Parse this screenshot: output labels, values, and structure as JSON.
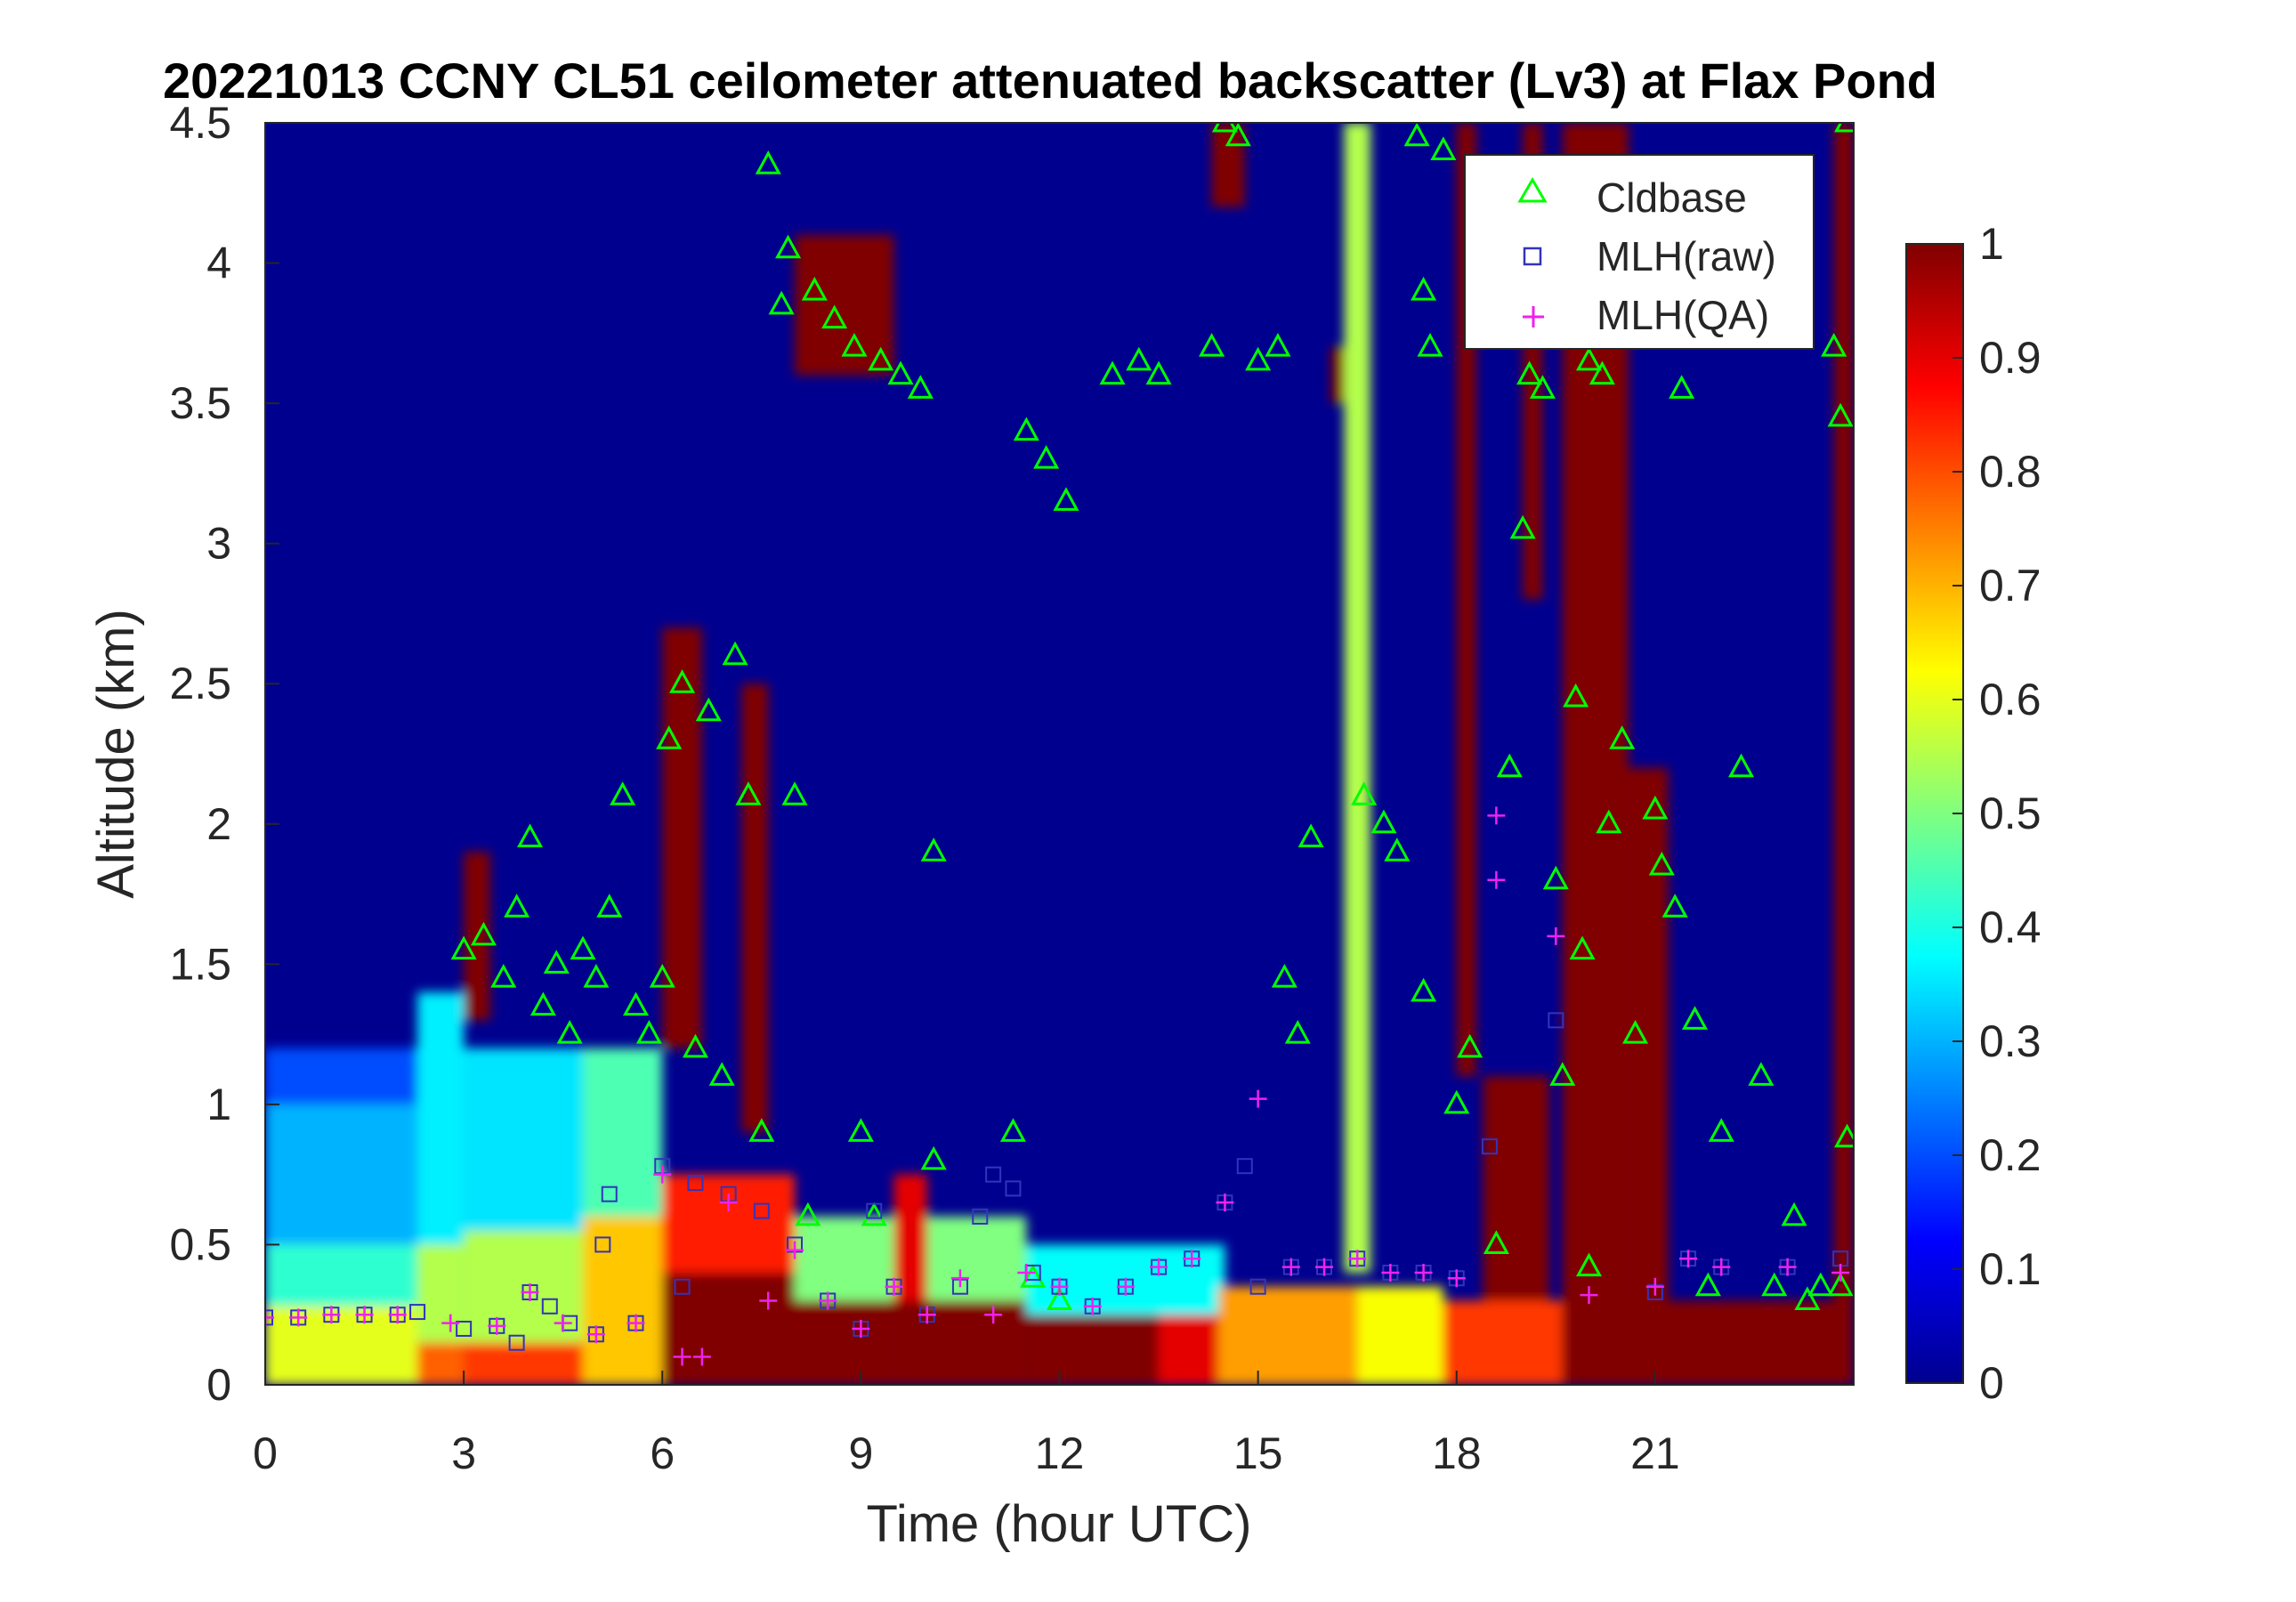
{
  "chart_data": {
    "type": "heatmap",
    "title": "20221013 CCNY CL51 ceilometer attenuated backscatter (Lv3) at Flax Pond",
    "xlabel": "Time (hour UTC)",
    "ylabel": "Altitude (km)",
    "xlim": [
      0,
      24
    ],
    "ylim": [
      0,
      4.5
    ],
    "xticks": [
      0,
      3,
      6,
      9,
      12,
      15,
      18,
      21
    ],
    "xtick_labels": [
      "0",
      "3",
      "6",
      "9",
      "12",
      "15",
      "18",
      "21"
    ],
    "yticks": [
      0,
      0.5,
      1,
      1.5,
      2,
      2.5,
      3,
      3.5,
      4,
      4.5
    ],
    "ytick_labels": [
      "0",
      "0.5",
      "1",
      "1.5",
      "2",
      "2.5",
      "3",
      "3.5",
      "4",
      "4.5"
    ],
    "colorbar": {
      "range": [
        0,
        1
      ],
      "colormap": "jet",
      "ticks": [
        0,
        0.1,
        0.2,
        0.3,
        0.4,
        0.5,
        0.6,
        0.7,
        0.8,
        0.9,
        1
      ],
      "tick_labels": [
        "0",
        "0.1",
        "0.2",
        "0.3",
        "0.4",
        "0.5",
        "0.6",
        "0.7",
        "0.8",
        "0.9",
        "1"
      ]
    },
    "legend": {
      "placement": "top-right",
      "entries": [
        {
          "label": "Cldbase",
          "marker": "triangle",
          "color": "#00ff00"
        },
        {
          "label": "MLH(raw)",
          "marker": "square",
          "color": "#3333bb"
        },
        {
          "label": "MLH(QA)",
          "marker": "plus",
          "color": "#ee22ee"
        }
      ]
    },
    "regions": [
      {
        "x": [
          0,
          2.3
        ],
        "y": [
          0,
          0.28
        ],
        "value": 0.6
      },
      {
        "x": [
          0,
          2.3
        ],
        "y": [
          0.28,
          0.5
        ],
        "value": 0.42
      },
      {
        "x": [
          0,
          2.3
        ],
        "y": [
          0.5,
          1.0
        ],
        "value": 0.3
      },
      {
        "x": [
          0,
          2.3
        ],
        "y": [
          1.0,
          1.2
        ],
        "value": 0.2
      },
      {
        "x": [
          2.3,
          3.0
        ],
        "y": [
          0,
          0.15
        ],
        "value": 0.78
      },
      {
        "x": [
          2.3,
          3.0
        ],
        "y": [
          0.15,
          0.5
        ],
        "value": 0.55
      },
      {
        "x": [
          2.3,
          3.0
        ],
        "y": [
          0.5,
          1.4
        ],
        "value": 0.36
      },
      {
        "x": [
          3.0,
          4.8
        ],
        "y": [
          0,
          0.15
        ],
        "value": 0.82
      },
      {
        "x": [
          3.0,
          4.8
        ],
        "y": [
          0.15,
          0.55
        ],
        "value": 0.55
      },
      {
        "x": [
          3.0,
          4.8
        ],
        "y": [
          0.55,
          1.2
        ],
        "value": 0.35
      },
      {
        "x": [
          4.8,
          6.0
        ],
        "y": [
          0,
          0.6
        ],
        "value": 0.68
      },
      {
        "x": [
          4.8,
          6.0
        ],
        "y": [
          0.6,
          1.2
        ],
        "value": 0.45
      },
      {
        "x": [
          6.0,
          9.5
        ],
        "y": [
          0,
          0.4
        ],
        "value": 1.0
      },
      {
        "x": [
          6.0,
          8.0
        ],
        "y": [
          0.4,
          0.75
        ],
        "value": 0.85
      },
      {
        "x": [
          8.0,
          11.5
        ],
        "y": [
          0.3,
          0.6
        ],
        "value": 0.5
      },
      {
        "x": [
          9.5,
          11.5
        ],
        "y": [
          0,
          0.3
        ],
        "value": 1.0
      },
      {
        "x": [
          9.5,
          10.0
        ],
        "y": [
          0.3,
          0.75
        ],
        "value": 0.9
      },
      {
        "x": [
          11.5,
          13.5
        ],
        "y": [
          0,
          0.25
        ],
        "value": 1.0
      },
      {
        "x": [
          11.5,
          14.5
        ],
        "y": [
          0.25,
          0.5
        ],
        "value": 0.38
      },
      {
        "x": [
          13.5,
          14.4
        ],
        "y": [
          0,
          0.25
        ],
        "value": 0.9
      },
      {
        "x": [
          14.4,
          16.5
        ],
        "y": [
          0,
          0.35
        ],
        "value": 0.72
      },
      {
        "x": [
          16.5,
          17.8
        ],
        "y": [
          0,
          0.35
        ],
        "value": 0.62
      },
      {
        "x": [
          17.8,
          19.6
        ],
        "y": [
          0,
          0.3
        ],
        "value": 0.82
      },
      {
        "x": [
          19.6,
          24.0
        ],
        "y": [
          0,
          0.3
        ],
        "value": 1.0
      },
      {
        "x": [
          18.4,
          19.4
        ],
        "y": [
          0.3,
          1.1
        ],
        "value": 1.0
      },
      {
        "x": [
          19.6,
          20.6
        ],
        "y": [
          0.3,
          4.5
        ],
        "value": 1.0
      },
      {
        "x": [
          20.6,
          21.2
        ],
        "y": [
          0.3,
          2.2
        ],
        "value": 1.0
      },
      {
        "x": [
          18.0,
          18.3
        ],
        "y": [
          1.1,
          4.5
        ],
        "value": 1.0
      },
      {
        "x": [
          19.0,
          19.3
        ],
        "y": [
          2.8,
          4.5
        ],
        "value": 1.0
      },
      {
        "x": [
          23.7,
          24.0
        ],
        "y": [
          0.3,
          4.5
        ],
        "value": 1.0
      },
      {
        "x": [
          16.3,
          16.7
        ],
        "y": [
          0.4,
          4.5
        ],
        "value": 0.55
      },
      {
        "x": [
          6.0,
          6.6
        ],
        "y": [
          1.2,
          2.7
        ],
        "value": 1.0
      },
      {
        "x": [
          7.2,
          7.6
        ],
        "y": [
          0.9,
          2.5
        ],
        "value": 1.0
      },
      {
        "x": [
          3.0,
          3.4
        ],
        "y": [
          1.3,
          1.9
        ],
        "value": 1.0
      },
      {
        "x": [
          8.0,
          9.5
        ],
        "y": [
          3.6,
          4.1
        ],
        "value": 1.0
      },
      {
        "x": [
          14.3,
          14.8
        ],
        "y": [
          4.2,
          4.5
        ],
        "value": 1.0
      },
      {
        "x": [
          16.1,
          16.3
        ],
        "y": [
          3.5,
          3.7
        ],
        "value": 1.0
      }
    ],
    "cloud_base_km": [
      {
        "x": 3.0,
        "y": 1.55
      },
      {
        "x": 3.3,
        "y": 1.6
      },
      {
        "x": 3.6,
        "y": 1.45
      },
      {
        "x": 3.8,
        "y": 1.7
      },
      {
        "x": 4.0,
        "y": 1.95
      },
      {
        "x": 4.2,
        "y": 1.35
      },
      {
        "x": 4.4,
        "y": 1.5
      },
      {
        "x": 4.6,
        "y": 1.25
      },
      {
        "x": 4.8,
        "y": 1.55
      },
      {
        "x": 5.0,
        "y": 1.45
      },
      {
        "x": 5.2,
        "y": 1.7
      },
      {
        "x": 5.4,
        "y": 2.1
      },
      {
        "x": 5.6,
        "y": 1.35
      },
      {
        "x": 5.8,
        "y": 1.25
      },
      {
        "x": 6.0,
        "y": 1.45
      },
      {
        "x": 6.1,
        "y": 2.3
      },
      {
        "x": 6.3,
        "y": 2.5
      },
      {
        "x": 6.5,
        "y": 1.2
      },
      {
        "x": 6.7,
        "y": 2.4
      },
      {
        "x": 6.9,
        "y": 1.1
      },
      {
        "x": 7.1,
        "y": 2.6
      },
      {
        "x": 7.3,
        "y": 2.1
      },
      {
        "x": 7.5,
        "y": 0.9
      },
      {
        "x": 7.6,
        "y": 4.35
      },
      {
        "x": 7.8,
        "y": 3.85
      },
      {
        "x": 7.9,
        "y": 4.05
      },
      {
        "x": 8.0,
        "y": 2.1
      },
      {
        "x": 8.2,
        "y": 0.6
      },
      {
        "x": 8.3,
        "y": 3.9
      },
      {
        "x": 8.6,
        "y": 3.8
      },
      {
        "x": 8.9,
        "y": 3.7
      },
      {
        "x": 9.0,
        "y": 0.9
      },
      {
        "x": 9.2,
        "y": 0.6
      },
      {
        "x": 9.3,
        "y": 3.65
      },
      {
        "x": 9.6,
        "y": 3.6
      },
      {
        "x": 9.9,
        "y": 3.55
      },
      {
        "x": 10.1,
        "y": 1.9
      },
      {
        "x": 10.1,
        "y": 0.8
      },
      {
        "x": 11.3,
        "y": 0.9
      },
      {
        "x": 11.5,
        "y": 3.4
      },
      {
        "x": 11.8,
        "y": 3.3
      },
      {
        "x": 12.1,
        "y": 3.15
      },
      {
        "x": 11.6,
        "y": 0.38
      },
      {
        "x": 12.0,
        "y": 0.3
      },
      {
        "x": 12.8,
        "y": 3.6
      },
      {
        "x": 13.2,
        "y": 3.65
      },
      {
        "x": 13.5,
        "y": 3.6
      },
      {
        "x": 14.3,
        "y": 3.7
      },
      {
        "x": 14.5,
        "y": 4.5
      },
      {
        "x": 14.7,
        "y": 4.45
      },
      {
        "x": 15.0,
        "y": 3.65
      },
      {
        "x": 15.3,
        "y": 3.7
      },
      {
        "x": 15.4,
        "y": 1.45
      },
      {
        "x": 15.6,
        "y": 1.25
      },
      {
        "x": 15.8,
        "y": 1.95
      },
      {
        "x": 16.6,
        "y": 2.1
      },
      {
        "x": 16.9,
        "y": 2.0
      },
      {
        "x": 17.1,
        "y": 1.9
      },
      {
        "x": 17.4,
        "y": 4.45
      },
      {
        "x": 17.5,
        "y": 3.9
      },
      {
        "x": 17.6,
        "y": 3.7
      },
      {
        "x": 17.5,
        "y": 1.4
      },
      {
        "x": 17.8,
        "y": 4.4
      },
      {
        "x": 18.0,
        "y": 1.0
      },
      {
        "x": 18.2,
        "y": 1.2
      },
      {
        "x": 18.6,
        "y": 0.5
      },
      {
        "x": 18.8,
        "y": 2.2
      },
      {
        "x": 19.0,
        "y": 3.05
      },
      {
        "x": 19.1,
        "y": 3.6
      },
      {
        "x": 19.3,
        "y": 3.55
      },
      {
        "x": 19.5,
        "y": 1.8
      },
      {
        "x": 19.6,
        "y": 1.1
      },
      {
        "x": 19.8,
        "y": 2.45
      },
      {
        "x": 19.9,
        "y": 1.55
      },
      {
        "x": 20.0,
        "y": 0.42
      },
      {
        "x": 20.0,
        "y": 3.65
      },
      {
        "x": 20.2,
        "y": 3.6
      },
      {
        "x": 20.3,
        "y": 2.0
      },
      {
        "x": 20.5,
        "y": 2.3
      },
      {
        "x": 20.7,
        "y": 1.25
      },
      {
        "x": 21.0,
        "y": 2.05
      },
      {
        "x": 21.1,
        "y": 1.85
      },
      {
        "x": 21.3,
        "y": 1.7
      },
      {
        "x": 21.4,
        "y": 3.55
      },
      {
        "x": 21.6,
        "y": 1.3
      },
      {
        "x": 21.8,
        "y": 0.35
      },
      {
        "x": 22.0,
        "y": 0.9
      },
      {
        "x": 22.3,
        "y": 2.2
      },
      {
        "x": 22.6,
        "y": 1.1
      },
      {
        "x": 22.8,
        "y": 0.35
      },
      {
        "x": 23.1,
        "y": 0.6
      },
      {
        "x": 23.3,
        "y": 0.3
      },
      {
        "x": 23.5,
        "y": 0.35
      },
      {
        "x": 23.7,
        "y": 3.7
      },
      {
        "x": 23.8,
        "y": 3.45
      },
      {
        "x": 23.9,
        "y": 4.5
      },
      {
        "x": 23.8,
        "y": 0.35
      },
      {
        "x": 23.9,
        "y": 0.88
      }
    ],
    "mlh_raw_km": [
      {
        "x": 0.0,
        "y": 0.24
      },
      {
        "x": 0.5,
        "y": 0.24
      },
      {
        "x": 1.0,
        "y": 0.25
      },
      {
        "x": 1.5,
        "y": 0.25
      },
      {
        "x": 2.0,
        "y": 0.25
      },
      {
        "x": 2.3,
        "y": 0.26
      },
      {
        "x": 3.0,
        "y": 0.2
      },
      {
        "x": 3.5,
        "y": 0.21
      },
      {
        "x": 3.8,
        "y": 0.15
      },
      {
        "x": 4.0,
        "y": 0.33
      },
      {
        "x": 4.3,
        "y": 0.28
      },
      {
        "x": 4.6,
        "y": 0.22
      },
      {
        "x": 5.0,
        "y": 0.18
      },
      {
        "x": 5.1,
        "y": 0.5
      },
      {
        "x": 5.2,
        "y": 0.68
      },
      {
        "x": 5.6,
        "y": 0.22
      },
      {
        "x": 6.0,
        "y": 0.78
      },
      {
        "x": 6.3,
        "y": 0.35
      },
      {
        "x": 6.5,
        "y": 0.72
      },
      {
        "x": 7.0,
        "y": 0.68
      },
      {
        "x": 7.5,
        "y": 0.62
      },
      {
        "x": 8.0,
        "y": 0.5
      },
      {
        "x": 8.5,
        "y": 0.3
      },
      {
        "x": 9.0,
        "y": 0.2
      },
      {
        "x": 9.2,
        "y": 0.62
      },
      {
        "x": 9.5,
        "y": 0.35
      },
      {
        "x": 10.0,
        "y": 0.25
      },
      {
        "x": 10.5,
        "y": 0.35
      },
      {
        "x": 10.8,
        "y": 0.6
      },
      {
        "x": 11.0,
        "y": 0.75
      },
      {
        "x": 11.3,
        "y": 0.7
      },
      {
        "x": 11.6,
        "y": 0.4
      },
      {
        "x": 12.0,
        "y": 0.35
      },
      {
        "x": 12.5,
        "y": 0.28
      },
      {
        "x": 13.0,
        "y": 0.35
      },
      {
        "x": 13.5,
        "y": 0.42
      },
      {
        "x": 14.0,
        "y": 0.45
      },
      {
        "x": 14.5,
        "y": 0.65
      },
      {
        "x": 14.8,
        "y": 0.78
      },
      {
        "x": 15.0,
        "y": 0.35
      },
      {
        "x": 15.5,
        "y": 0.42
      },
      {
        "x": 16.0,
        "y": 0.42
      },
      {
        "x": 16.5,
        "y": 0.45
      },
      {
        "x": 17.0,
        "y": 0.4
      },
      {
        "x": 17.5,
        "y": 0.4
      },
      {
        "x": 18.0,
        "y": 0.38
      },
      {
        "x": 18.5,
        "y": 0.85
      },
      {
        "x": 19.5,
        "y": 1.3
      },
      {
        "x": 21.0,
        "y": 0.33
      },
      {
        "x": 21.5,
        "y": 0.45
      },
      {
        "x": 22.0,
        "y": 0.42
      },
      {
        "x": 23.0,
        "y": 0.42
      },
      {
        "x": 23.8,
        "y": 0.45
      }
    ],
    "mlh_qa_km": [
      {
        "x": 0.0,
        "y": 0.24
      },
      {
        "x": 0.5,
        "y": 0.24
      },
      {
        "x": 1.0,
        "y": 0.25
      },
      {
        "x": 1.5,
        "y": 0.25
      },
      {
        "x": 2.0,
        "y": 0.25
      },
      {
        "x": 2.8,
        "y": 0.22
      },
      {
        "x": 3.5,
        "y": 0.21
      },
      {
        "x": 4.0,
        "y": 0.33
      },
      {
        "x": 4.5,
        "y": 0.22
      },
      {
        "x": 5.0,
        "y": 0.18
      },
      {
        "x": 5.6,
        "y": 0.22
      },
      {
        "x": 6.0,
        "y": 0.75
      },
      {
        "x": 6.3,
        "y": 0.1
      },
      {
        "x": 6.6,
        "y": 0.1
      },
      {
        "x": 7.0,
        "y": 0.65
      },
      {
        "x": 7.6,
        "y": 0.3
      },
      {
        "x": 8.0,
        "y": 0.48
      },
      {
        "x": 8.5,
        "y": 0.3
      },
      {
        "x": 9.0,
        "y": 0.2
      },
      {
        "x": 9.5,
        "y": 0.35
      },
      {
        "x": 10.0,
        "y": 0.25
      },
      {
        "x": 10.5,
        "y": 0.38
      },
      {
        "x": 11.0,
        "y": 0.25
      },
      {
        "x": 11.5,
        "y": 0.4
      },
      {
        "x": 12.0,
        "y": 0.35
      },
      {
        "x": 12.5,
        "y": 0.28
      },
      {
        "x": 13.0,
        "y": 0.35
      },
      {
        "x": 13.5,
        "y": 0.42
      },
      {
        "x": 14.0,
        "y": 0.45
      },
      {
        "x": 14.5,
        "y": 0.65
      },
      {
        "x": 15.0,
        "y": 1.02
      },
      {
        "x": 15.5,
        "y": 0.42
      },
      {
        "x": 16.0,
        "y": 0.42
      },
      {
        "x": 16.5,
        "y": 0.45
      },
      {
        "x": 17.0,
        "y": 0.4
      },
      {
        "x": 17.5,
        "y": 0.4
      },
      {
        "x": 18.0,
        "y": 0.38
      },
      {
        "x": 18.6,
        "y": 2.03
      },
      {
        "x": 18.6,
        "y": 1.8
      },
      {
        "x": 19.5,
        "y": 1.6
      },
      {
        "x": 20.0,
        "y": 0.32
      },
      {
        "x": 21.0,
        "y": 0.35
      },
      {
        "x": 21.5,
        "y": 0.45
      },
      {
        "x": 22.0,
        "y": 0.42
      },
      {
        "x": 23.0,
        "y": 0.42
      },
      {
        "x": 23.8,
        "y": 0.4
      }
    ]
  }
}
